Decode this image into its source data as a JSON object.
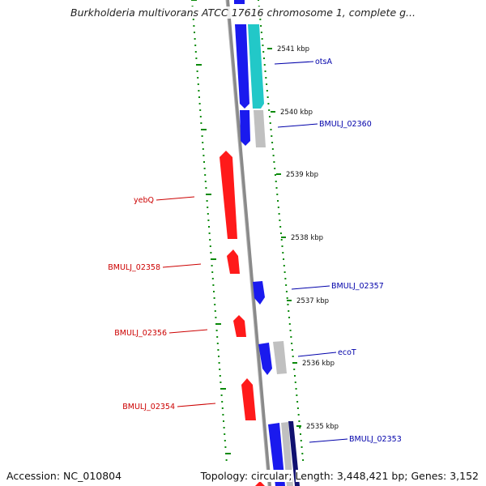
{
  "title": "Burkholderia multivorans ATCC 17616 chromosome 1, complete g...",
  "footer": {
    "accession_label": "Accession:",
    "accession": "NC_010804",
    "topology_label": "Topology:",
    "topology": "circular;",
    "length_label": "Length:",
    "length": "3,448,421 bp;",
    "genes_label": "Genes:",
    "genes": "3,152"
  },
  "colors": {
    "forward_gene": "#ff1a1a",
    "reverse_gene": "#1a1aee",
    "cyan_gene": "#22c8c8",
    "grey_gene": "#c0c0c0",
    "backbone": "#8a8a8a",
    "tick": "#0a8a0a",
    "forward_label": "#cc0000",
    "reverse_label": "#0000aa"
  },
  "ticks": [
    {
      "label": "2541 kbp"
    },
    {
      "label": "2540 kbp"
    },
    {
      "label": "2539 kbp"
    },
    {
      "label": "2538 kbp"
    },
    {
      "label": "2537 kbp"
    },
    {
      "label": "2536 kbp"
    },
    {
      "label": "2535 kbp"
    }
  ],
  "gene_labels": [
    {
      "name": "otsA",
      "strand": "reverse"
    },
    {
      "name": "BMULJ_02360",
      "strand": "reverse"
    },
    {
      "name": "yebQ",
      "strand": "forward"
    },
    {
      "name": "BMULJ_02358",
      "strand": "forward"
    },
    {
      "name": "BMULJ_02357",
      "strand": "reverse"
    },
    {
      "name": "BMULJ_02356",
      "strand": "forward"
    },
    {
      "name": "ecoT",
      "strand": "reverse"
    },
    {
      "name": "BMULJ_02354",
      "strand": "forward"
    },
    {
      "name": "BMULJ_02353",
      "strand": "reverse"
    }
  ]
}
